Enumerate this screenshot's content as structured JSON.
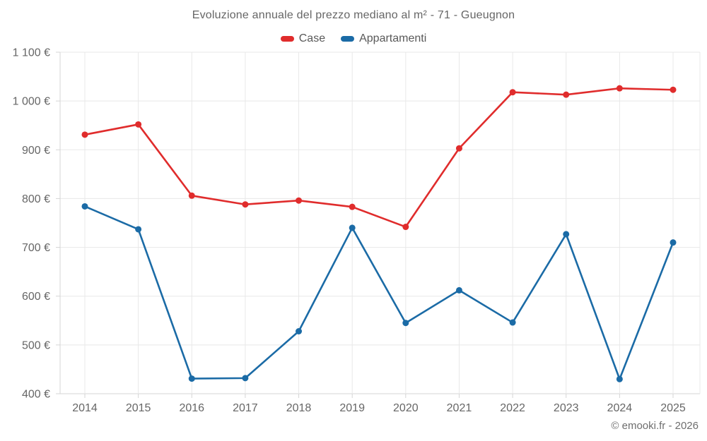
{
  "header": {
    "title": "Evoluzione annuale del prezzo mediano al m² - 71 - Gueugnon"
  },
  "footer": {
    "attribution": "© emooki.fr - 2026"
  },
  "colors": {
    "case_red": "#e02c2c",
    "appartamenti_blue": "#1b6ba6",
    "grid": "#e8e8e8",
    "axis": "#d5d5d5",
    "tick_text": "#666666"
  },
  "chart_data": {
    "type": "line",
    "title": "Evoluzione annuale del prezzo mediano al m² - 71 - Gueugnon",
    "x": [
      2014,
      2015,
      2016,
      2017,
      2018,
      2019,
      2020,
      2021,
      2022,
      2023,
      2024,
      2025
    ],
    "series": [
      {
        "name": "Case",
        "color": "#e02c2c",
        "values": [
          931,
          952,
          806,
          788,
          796,
          783,
          742,
          903,
          1018,
          1013,
          1026,
          1023
        ]
      },
      {
        "name": "Appartamenti",
        "color": "#1b6ba6",
        "values": [
          784,
          737,
          431,
          432,
          528,
          740,
          545,
          612,
          546,
          727,
          430,
          710
        ]
      }
    ],
    "ylim": [
      400,
      1100
    ],
    "ytick_step": 100,
    "ytick_suffix": " €",
    "grid": true,
    "legend_position": "top",
    "marker": "circle"
  }
}
